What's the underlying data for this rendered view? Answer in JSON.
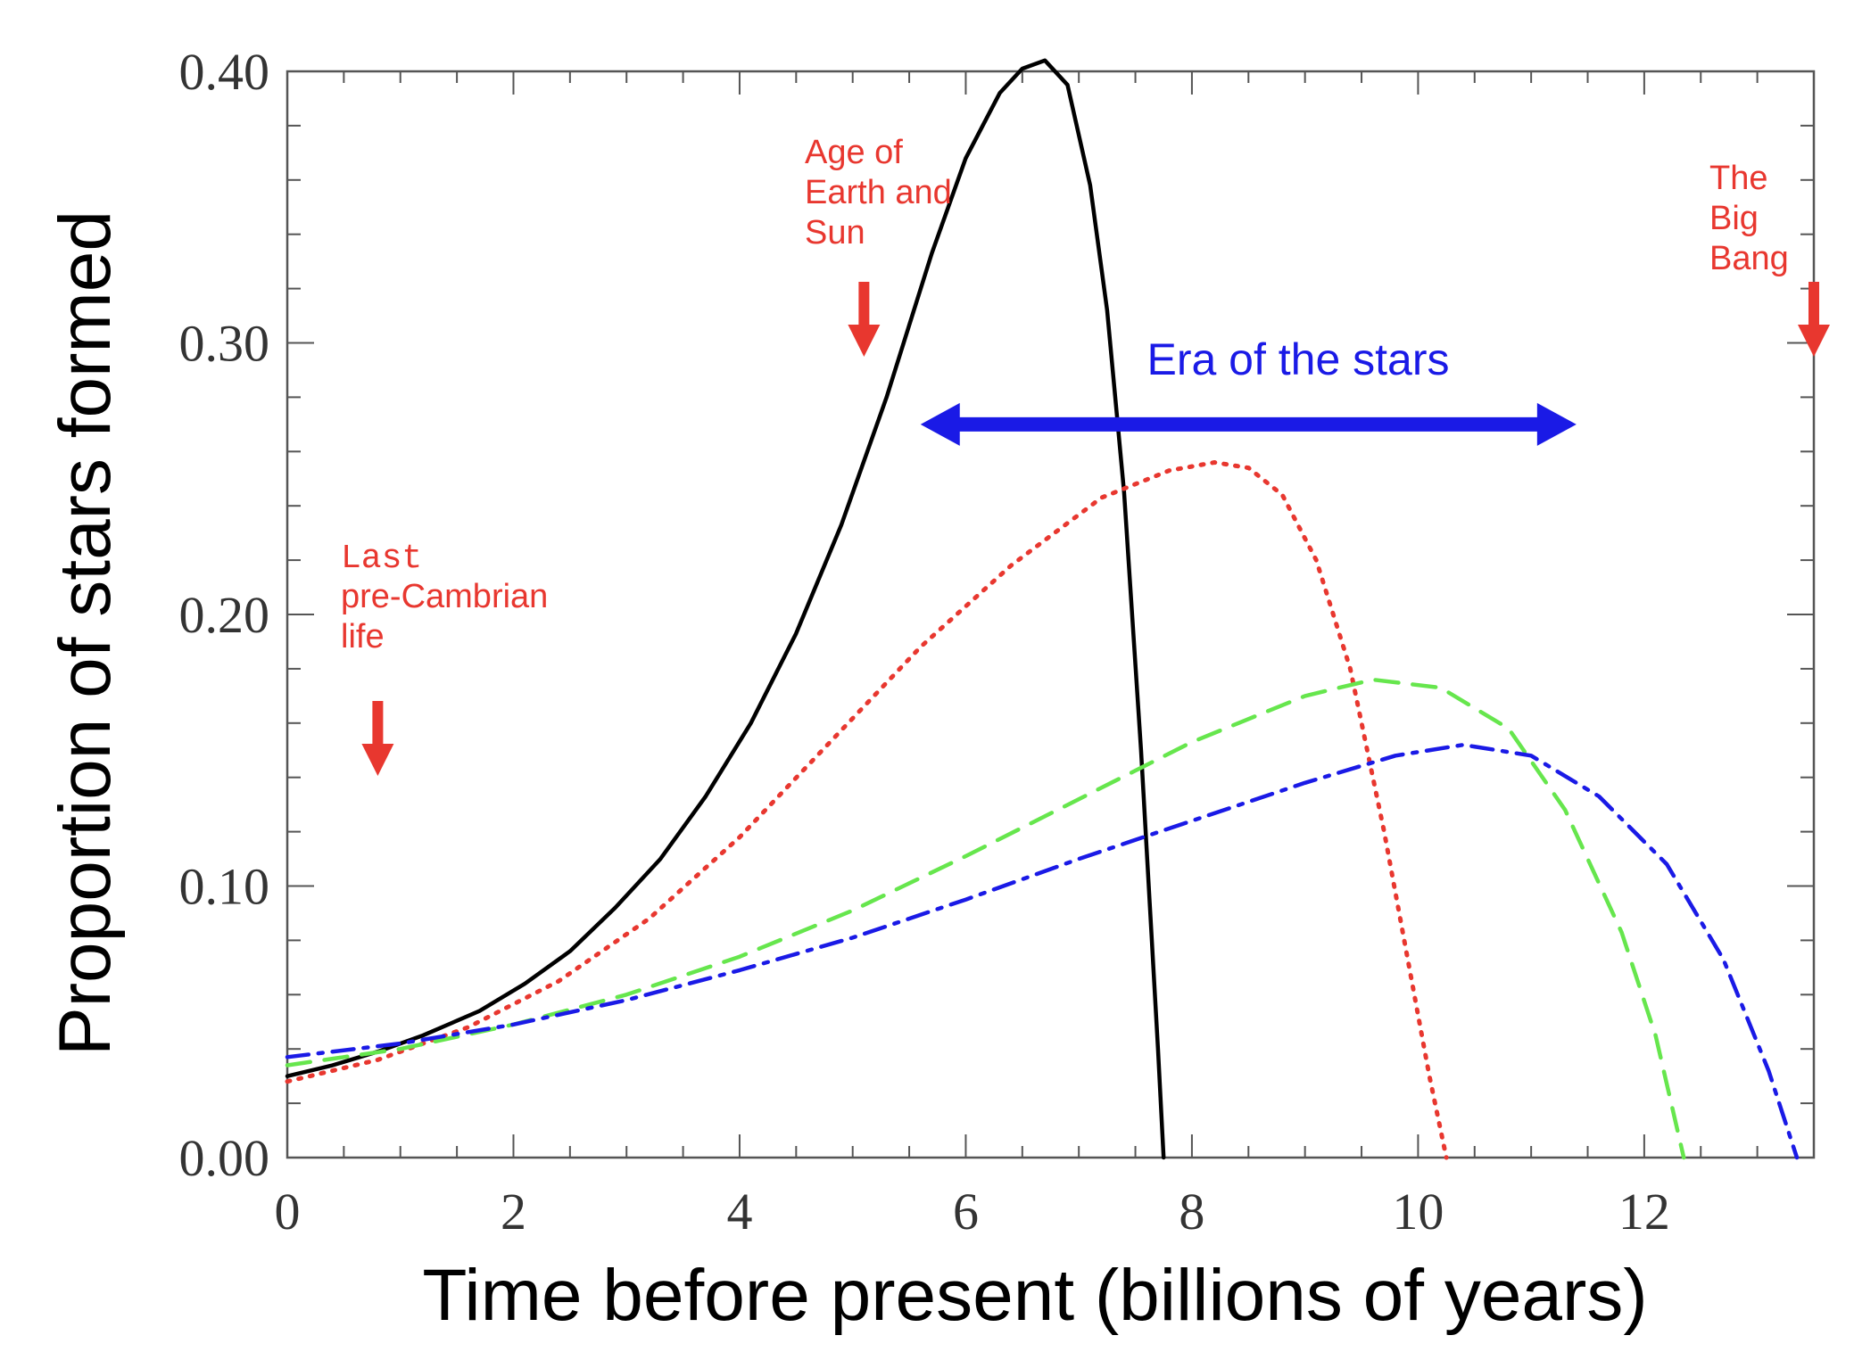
{
  "chart_data": {
    "type": "line",
    "xlabel": "Time before present (billions of years)",
    "ylabel": "Proportion of stars formed",
    "xlim": [
      0,
      13.5
    ],
    "ylim": [
      0,
      0.4
    ],
    "x_ticks": [
      0,
      2,
      4,
      6,
      8,
      10,
      12
    ],
    "x_tick_labels": [
      "0",
      "2",
      "4",
      "6",
      "8",
      "10",
      "12"
    ],
    "y_ticks": [
      0,
      0.1,
      0.2,
      0.3,
      0.4
    ],
    "y_tick_labels": [
      "0.00",
      "0.10",
      "0.20",
      "0.30",
      "0.40"
    ],
    "grid": false,
    "colors": {
      "annotation": "#e8372f",
      "era": "#1a1ae6",
      "black": "#000000",
      "red": "#e8372f",
      "green": "#66e64d",
      "blue": "#1a1ae6"
    },
    "series": [
      {
        "color": "black",
        "style": "solid",
        "x": [
          0,
          0.4,
          0.8,
          1.2,
          1.7,
          2.1,
          2.5,
          2.9,
          3.3,
          3.7,
          4.1,
          4.5,
          4.9,
          5.3,
          5.7,
          6.0,
          6.3,
          6.5,
          6.7,
          6.9,
          7.1,
          7.25,
          7.4,
          7.55,
          7.7,
          7.75
        ],
        "y": [
          0.03,
          0.034,
          0.039,
          0.045,
          0.054,
          0.064,
          0.076,
          0.092,
          0.11,
          0.133,
          0.16,
          0.193,
          0.233,
          0.28,
          0.333,
          0.368,
          0.392,
          0.401,
          0.404,
          0.395,
          0.358,
          0.312,
          0.245,
          0.15,
          0.04,
          0.0
        ]
      },
      {
        "color": "red",
        "style": "dotted",
        "x": [
          0,
          0.8,
          1.6,
          2.4,
          3.2,
          4.0,
          4.8,
          5.6,
          6.4,
          7.2,
          7.8,
          8.2,
          8.5,
          8.8,
          9.1,
          9.4,
          9.7,
          9.9,
          10.1,
          10.25
        ],
        "y": [
          0.028,
          0.036,
          0.048,
          0.065,
          0.088,
          0.118,
          0.153,
          0.188,
          0.218,
          0.243,
          0.253,
          0.256,
          0.254,
          0.244,
          0.22,
          0.18,
          0.12,
          0.075,
          0.03,
          0.0
        ]
      },
      {
        "color": "green",
        "style": "dashed",
        "x": [
          0,
          1,
          2,
          3,
          4,
          5,
          6,
          7,
          8,
          9,
          9.6,
          10.2,
          10.8,
          11.3,
          11.8,
          12.1,
          12.35
        ],
        "y": [
          0.034,
          0.04,
          0.049,
          0.06,
          0.074,
          0.091,
          0.111,
          0.132,
          0.153,
          0.17,
          0.176,
          0.173,
          0.158,
          0.128,
          0.083,
          0.045,
          0.0
        ]
      },
      {
        "color": "blue",
        "style": "dash-dot",
        "x": [
          0,
          1,
          2,
          3,
          4,
          5,
          6,
          7,
          8,
          9,
          9.8,
          10.4,
          11.0,
          11.6,
          12.2,
          12.7,
          13.1,
          13.35
        ],
        "y": [
          0.037,
          0.042,
          0.049,
          0.058,
          0.069,
          0.081,
          0.095,
          0.11,
          0.124,
          0.138,
          0.148,
          0.152,
          0.148,
          0.133,
          0.108,
          0.073,
          0.032,
          0.0
        ]
      }
    ],
    "annotations": {
      "last_precambrian": {
        "lines": [
          "Last",
          "pre-Cambrian",
          "life"
        ],
        "x": 0.8
      },
      "age_earth_sun": {
        "lines": [
          "Age of",
          "Earth and",
          "Sun"
        ],
        "x": 5.1
      },
      "big_bang": {
        "lines": [
          "The",
          "Big",
          "Bang"
        ],
        "x": 13.5
      },
      "era_of_stars": {
        "label": "Era of the stars",
        "x_range": [
          5.6,
          11.4
        ],
        "y": 0.27
      }
    }
  }
}
